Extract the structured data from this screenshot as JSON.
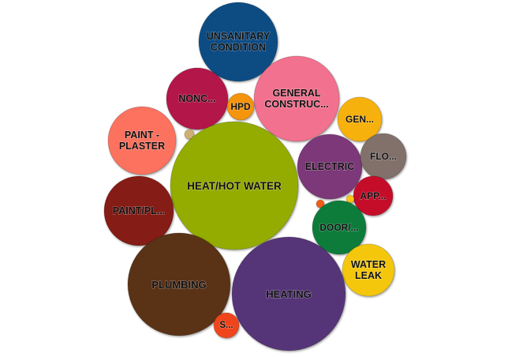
{
  "chart_data": {
    "type": "bubble",
    "title": "",
    "bubbles": [
      {
        "label": "UNSANITARY CONDITION",
        "value": 20,
        "color": "#0a4c83"
      },
      {
        "label": "GENERAL CONSTRUC...",
        "value": 23,
        "color": "#f2718e"
      },
      {
        "label": "NONC...",
        "value": 12,
        "color": "#b3194a"
      },
      {
        "label": "HPD",
        "value": 2.7,
        "color": "#f5940c"
      },
      {
        "label": "GEN...",
        "value": 6.4,
        "color": "#f7b10a"
      },
      {
        "label": "PAINT - PLASTER",
        "value": 16.5,
        "color": "#fc725f"
      },
      {
        "label": "",
        "value": 0.4,
        "color": "#cfb072"
      },
      {
        "label": "HEAT/HOT WATER",
        "value": 53,
        "color": "#94ab06"
      },
      {
        "label": "ELECTRIC",
        "value": 13.5,
        "color": "#7b3878"
      },
      {
        "label": "FLO...",
        "value": 5.7,
        "color": "#81716a"
      },
      {
        "label": "APP...",
        "value": 4.7,
        "color": "#c50b2c"
      },
      {
        "label": "",
        "value": 0.3,
        "color": "#f8c41a"
      },
      {
        "label": "",
        "value": 0.3,
        "color": "#ef5d12"
      },
      {
        "label": "PAINT/PL...",
        "value": 15,
        "color": "#851b12"
      },
      {
        "label": "DOOR/...",
        "value": 8.7,
        "color": "#0a7c3a"
      },
      {
        "label": "WATER LEAK",
        "value": 7.2,
        "color": "#f4c70c"
      },
      {
        "label": "PLUMBING",
        "value": 32.5,
        "color": "#5a3314"
      },
      {
        "label": "HEATING",
        "value": 41.5,
        "color": "#553677"
      },
      {
        "label": "S...",
        "value": 2.1,
        "color": "#f0451c"
      }
    ]
  }
}
